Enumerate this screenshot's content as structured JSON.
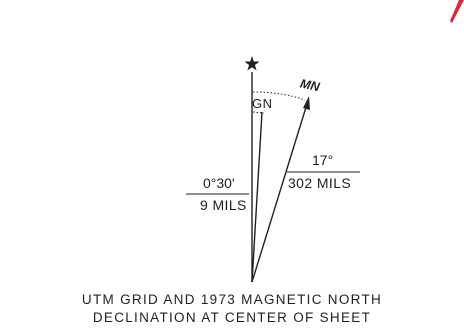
{
  "diagram": {
    "true_north_symbol": "star-icon",
    "grid_north": {
      "label": "GN",
      "angle": "0°30'",
      "mils": "9 MILS"
    },
    "magnetic_north": {
      "label": "MN",
      "angle": "17°",
      "mils": "302 MILS"
    },
    "caption": {
      "line1": "UTM GRID AND 1973 MAGNETIC NORTH",
      "line2": "DECLINATION AT CENTER OF SHEET"
    },
    "colors": {
      "ink": "#231f20",
      "accent": "#e0243a"
    }
  }
}
